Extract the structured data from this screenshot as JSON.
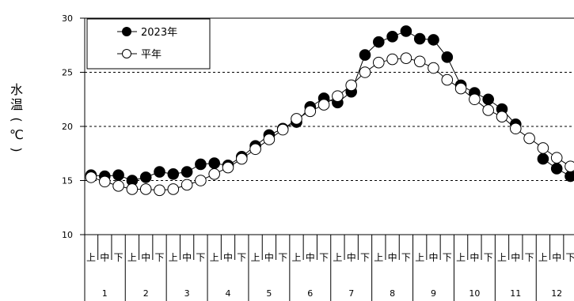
{
  "chart_data": {
    "type": "line",
    "title": "",
    "xlabel": "",
    "ylabel": [
      "水",
      "温",
      "(",
      "℃",
      ")"
    ],
    "ylim": [
      10,
      30
    ],
    "yticks": [
      10,
      15,
      20,
      25,
      30
    ],
    "grid": "dashed horizontal at 15, 20, 25",
    "legend_position": "top-left",
    "period_labels": [
      "上",
      "中",
      "下"
    ],
    "month_labels": [
      "1",
      "2",
      "3",
      "4",
      "5",
      "6",
      "7",
      "8",
      "9",
      "10",
      "11",
      "12"
    ],
    "series": [
      {
        "name": "2023年",
        "marker": "filled-circle",
        "color": "#000000",
        "values": [
          15.5,
          15.4,
          15.5,
          15.0,
          15.3,
          15.8,
          15.6,
          15.8,
          16.5,
          16.6,
          16.4,
          17.2,
          18.2,
          19.2,
          19.8,
          20.4,
          21.8,
          22.6,
          22.2,
          23.2,
          26.6,
          27.8,
          28.3,
          28.8,
          28.1,
          28.0,
          26.4,
          23.8,
          23.1,
          22.5,
          21.6,
          20.2,
          null,
          17.0,
          16.1,
          15.4
        ]
      },
      {
        "name": "平年",
        "marker": "open-circle",
        "color": "#000000",
        "values": [
          15.3,
          14.9,
          14.5,
          14.2,
          14.2,
          14.1,
          14.2,
          14.6,
          15.0,
          15.6,
          16.2,
          17.0,
          17.9,
          18.8,
          19.7,
          20.7,
          21.4,
          22.0,
          22.8,
          23.8,
          25.0,
          25.9,
          26.2,
          26.3,
          26.0,
          25.4,
          24.3,
          23.5,
          22.5,
          21.5,
          20.9,
          19.8,
          18.9,
          18.0,
          17.1,
          16.3
        ]
      }
    ]
  }
}
